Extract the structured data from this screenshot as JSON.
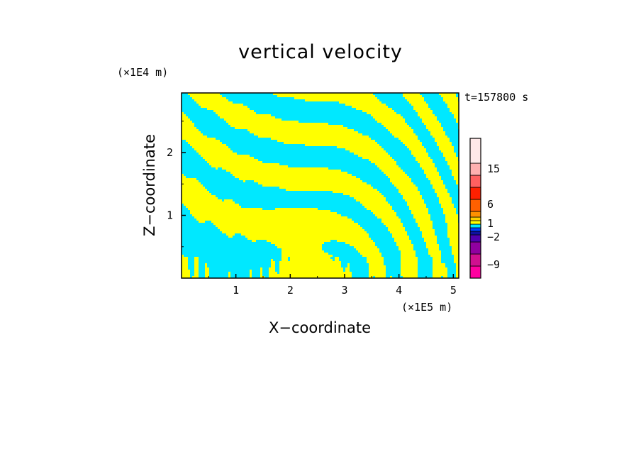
{
  "chart_data": {
    "type": "heatmap",
    "title": "vertical velocity",
    "xlabel": "X−coordinate",
    "ylabel": "Z−coordinate",
    "x_unit": "(×1E5 m)",
    "y_unit": "(×1E4 m)",
    "time_label": "t=157800 s",
    "xlim": [
      0,
      5.1
    ],
    "ylim": [
      0,
      2.95
    ],
    "x_ticks": [
      1,
      2,
      3,
      4,
      5
    ],
    "y_ticks": [
      1,
      2
    ],
    "colorbar": {
      "tick_labels": [
        "15",
        "6",
        "1",
        "−2",
        "−9"
      ],
      "colors": [
        "#ff00a0",
        "#d01090",
        "#9000a0",
        "#5000b0",
        "#1010a0",
        "#0040ff",
        "#00e8ff",
        "#ffff00",
        "#ffd000",
        "#ff9000",
        "#ff6000",
        "#ff2000",
        "#ff6060",
        "#ffb0b0",
        "#ffe8e8"
      ]
    },
    "field_colors": {
      "positive": "#ffff00",
      "negative": "#00e8ff"
    }
  }
}
